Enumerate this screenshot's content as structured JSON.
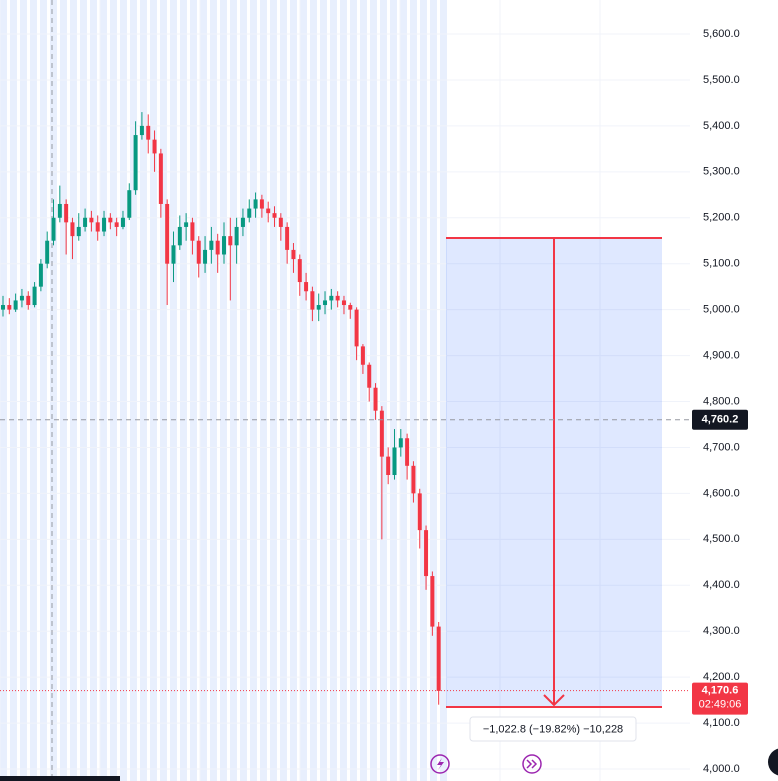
{
  "chart_data": {
    "type": "candlestick",
    "up_color": "#089981",
    "down_color": "#f23645",
    "open": [
      5000,
      5010,
      5000,
      5020,
      5030,
      5010,
      5050,
      5100,
      5150,
      5200,
      5230,
      5190,
      5160,
      5180,
      5200,
      5190,
      5170,
      5200,
      5190,
      5180,
      5200,
      5260,
      5380,
      5400,
      5370,
      5340,
      5230,
      5100,
      5140,
      5180,
      5190,
      5150,
      5100,
      5130,
      5150,
      5120,
      5160,
      5140,
      5180,
      5200,
      5220,
      5240,
      5220,
      5210,
      5200,
      5180,
      5130,
      5110,
      5060,
      5040,
      5000,
      5010,
      5020,
      5030,
      5020,
      5010,
      5000,
      4920,
      4880,
      4830,
      4780,
      4680,
      4640,
      4700,
      4720,
      4660,
      4600,
      4520,
      4420,
      4310
    ],
    "high": [
      5030,
      5025,
      5035,
      5045,
      5040,
      5060,
      5110,
      5170,
      5240,
      5270,
      5240,
      5200,
      5210,
      5220,
      5215,
      5205,
      5215,
      5210,
      5200,
      5215,
      5275,
      5410,
      5430,
      5425,
      5390,
      5350,
      5240,
      5170,
      5205,
      5210,
      5200,
      5160,
      5160,
      5180,
      5165,
      5190,
      5200,
      5200,
      5220,
      5240,
      5255,
      5250,
      5235,
      5225,
      5210,
      5190,
      5145,
      5120,
      5080,
      5050,
      5035,
      5040,
      5045,
      5040,
      5030,
      5015,
      5005,
      4925,
      4885,
      4840,
      4790,
      4700,
      4740,
      4740,
      4730,
      4670,
      4610,
      4530,
      4430,
      4320
    ],
    "low": [
      4985,
      4990,
      4995,
      5005,
      5000,
      5005,
      5040,
      5090,
      5140,
      5190,
      5120,
      5110,
      5150,
      5170,
      5170,
      5150,
      5160,
      5175,
      5160,
      5175,
      5195,
      5250,
      5370,
      5340,
      5300,
      5200,
      5010,
      5060,
      5130,
      5150,
      5120,
      5070,
      5080,
      5100,
      5080,
      5100,
      5020,
      5100,
      5160,
      5190,
      5200,
      5200,
      5190,
      5180,
      5150,
      5100,
      5080,
      5030,
      5020,
      4975,
      4975,
      4990,
      5000,
      5005,
      4990,
      4980,
      4890,
      4860,
      4800,
      4760,
      4500,
      4620,
      4630,
      4680,
      4630,
      4580,
      4480,
      4390,
      4290,
      4140
    ],
    "close": [
      5010,
      5000,
      5020,
      5030,
      5010,
      5050,
      5100,
      5150,
      5200,
      5230,
      5190,
      5160,
      5180,
      5200,
      5190,
      5170,
      5200,
      5190,
      5180,
      5200,
      5260,
      5380,
      5400,
      5370,
      5340,
      5230,
      5100,
      5140,
      5180,
      5190,
      5150,
      5100,
      5130,
      5150,
      5120,
      5160,
      5140,
      5180,
      5200,
      5220,
      5240,
      5220,
      5210,
      5200,
      5180,
      5130,
      5110,
      5060,
      5040,
      5000,
      5010,
      5020,
      5030,
      5020,
      5010,
      5000,
      4920,
      4880,
      4830,
      4780,
      4680,
      4640,
      4700,
      4720,
      4660,
      4600,
      4520,
      4420,
      4310,
      4170
    ],
    "ylim": [
      4000,
      5600
    ],
    "yticks": [
      {
        "value": 4000,
        "label": "4,000.0"
      },
      {
        "value": 4100,
        "label": "4,100.0"
      },
      {
        "value": 4200,
        "label": "4,200.0"
      },
      {
        "value": 4300,
        "label": "4,300.0"
      },
      {
        "value": 4400,
        "label": "4,400.0"
      },
      {
        "value": 4500,
        "label": "4,500.0"
      },
      {
        "value": 4600,
        "label": "4,600.0"
      },
      {
        "value": 4700,
        "label": "4,700.0"
      },
      {
        "value": 4800,
        "label": "4,800.0"
      },
      {
        "value": 4900,
        "label": "4,900.0"
      },
      {
        "value": 5000,
        "label": "5,000.0"
      },
      {
        "value": 5100,
        "label": "5,100.0"
      },
      {
        "value": 5200,
        "label": "5,200.0"
      },
      {
        "value": 5300,
        "label": "5,300.0"
      },
      {
        "value": 5400,
        "label": "5,400.0"
      },
      {
        "value": 5500,
        "label": "5,500.0"
      },
      {
        "value": 5600,
        "label": "5,600.0"
      }
    ],
    "crosshair_price": {
      "value": 4760.2,
      "label": "4,760.2"
    },
    "last_price": {
      "value": 4170.6,
      "label": "4,170.6"
    },
    "countdown": "02:49:06",
    "measure_label": "−1,022.8 (−19.82%) −10,228",
    "grid": true
  }
}
